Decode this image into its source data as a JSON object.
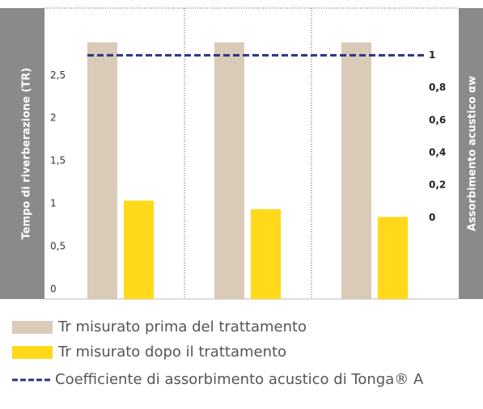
{
  "chart_data": {
    "type": "bar",
    "categories": [
      null,
      null,
      null
    ],
    "series": [
      {
        "name": "Tr misurato prima del trattamento",
        "color": "#d9cbb8",
        "values": [
          3.0,
          3.0,
          3.0
        ]
      },
      {
        "name": "Tr misurato dopo il trattamento",
        "color": "#ffd91a",
        "values": [
          1.15,
          1.05,
          0.96
        ]
      },
      {
        "name": "Coefficiente di assorbimento acustico di Tonga® A",
        "color": "#2e3183",
        "values": [
          1,
          1,
          1
        ],
        "axis": "y2",
        "type": "line",
        "dashed": true
      }
    ],
    "ylabel": "Tempo di riverberazione (TR)",
    "y2label": "Assorbimento acustico αw",
    "ylim": [
      0,
      3.4
    ],
    "yticks": [
      0,
      {
        "value": 0.5,
        "label": "0,5"
      },
      1,
      {
        "value": 1.5,
        "label": "1,5"
      },
      2,
      {
        "value": 2.5,
        "label": "2,5"
      }
    ],
    "y2lim": [
      -0.5,
      1.29
    ],
    "y2ticks": [
      0,
      {
        "value": 0.2,
        "label": "0,2"
      },
      {
        "value": 0.4,
        "label": "0,4"
      },
      {
        "value": 0.6,
        "label": "0,6"
      },
      {
        "value": 0.8,
        "label": "0,8"
      },
      1
    ]
  }
}
